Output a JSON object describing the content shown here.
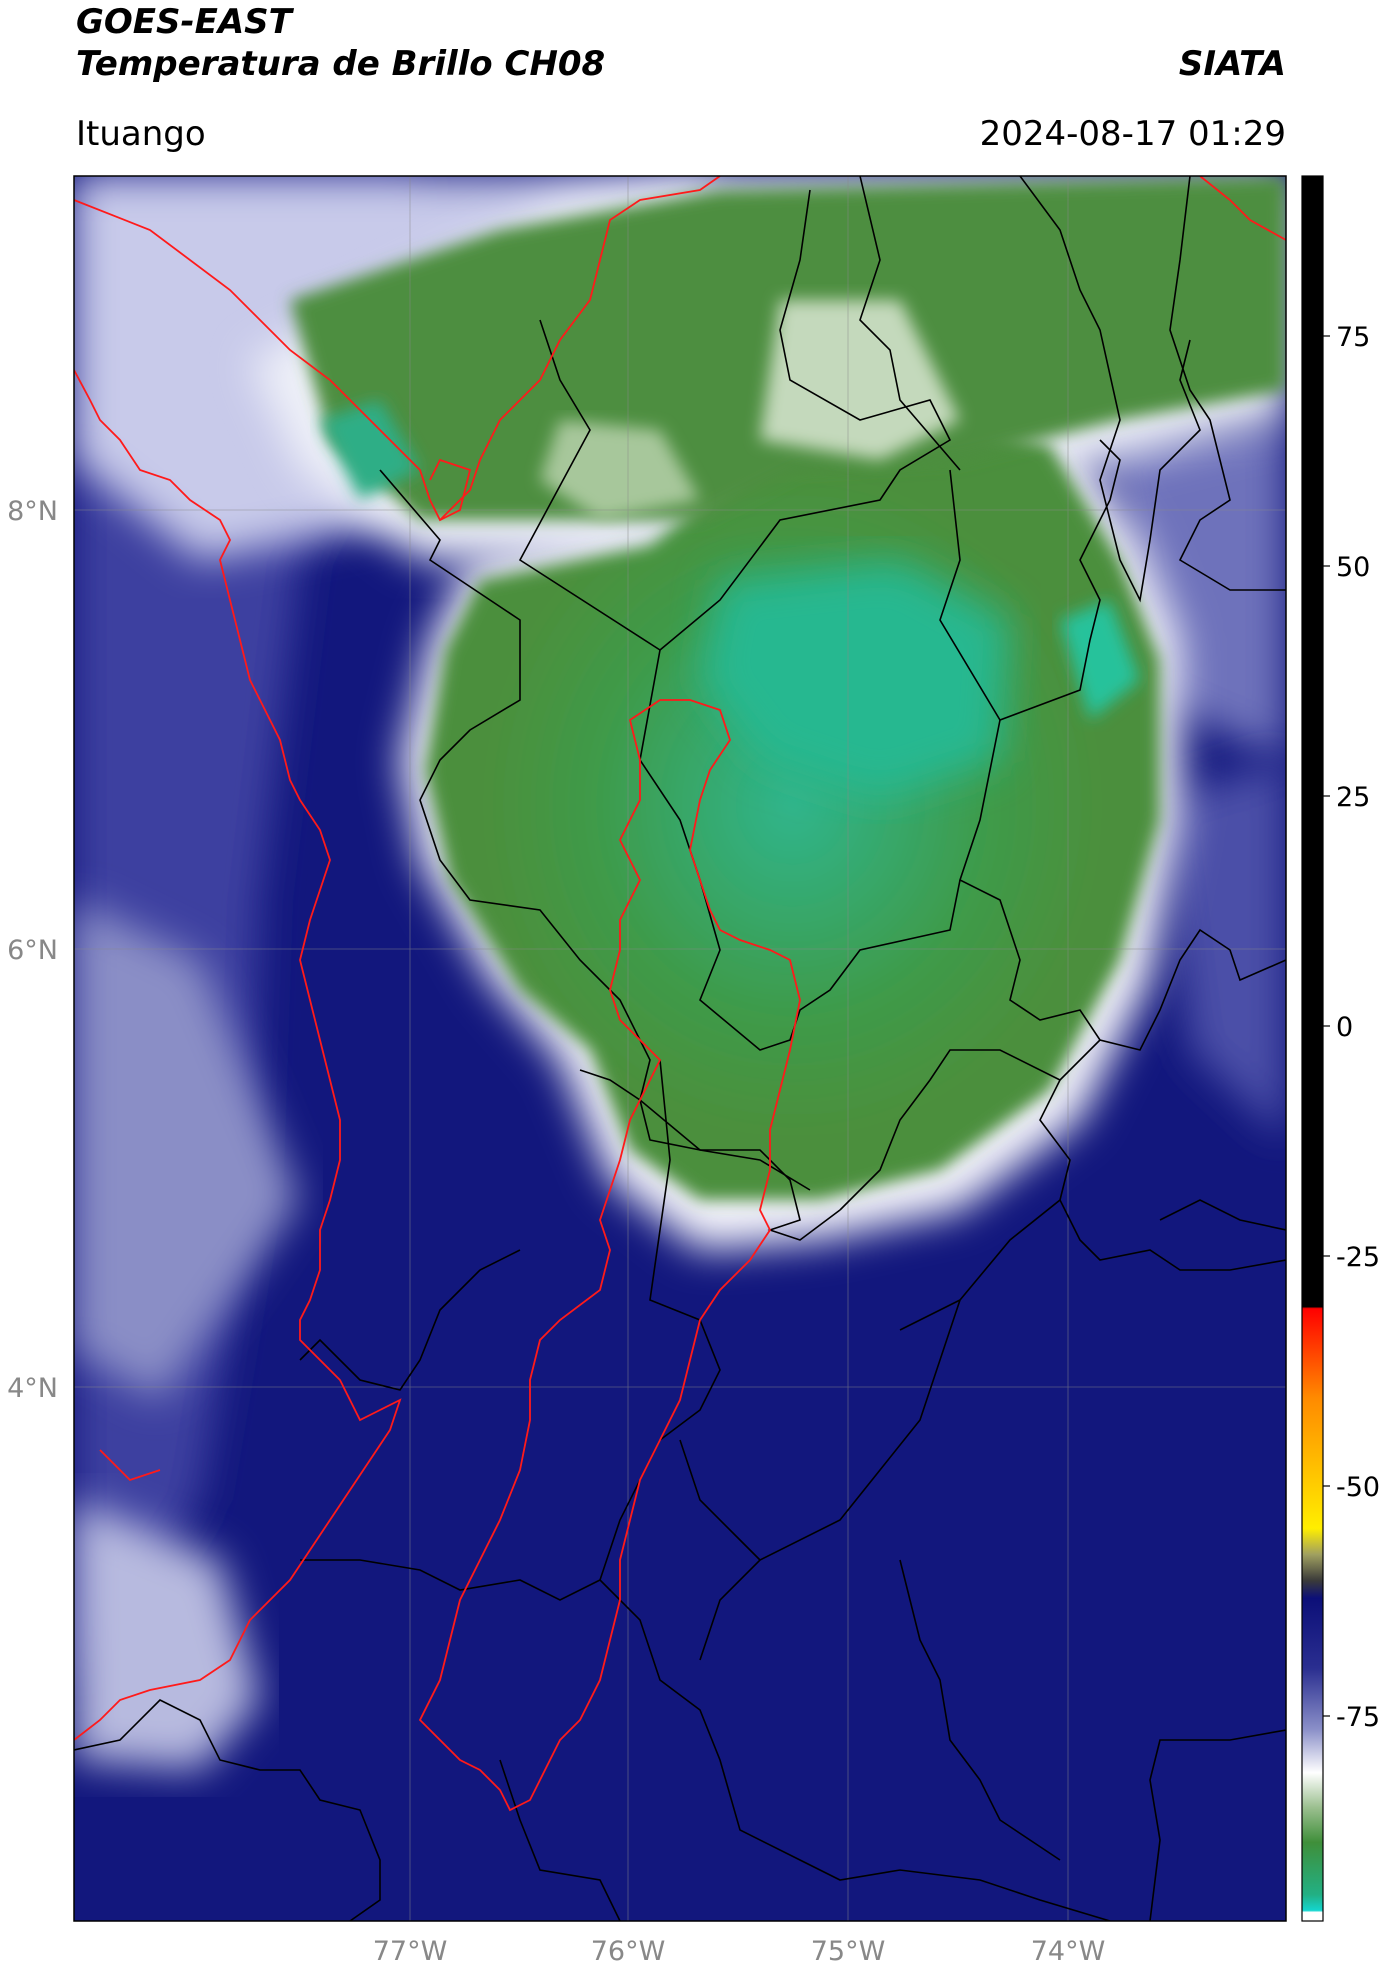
{
  "header": {
    "satellite": "GOES-EAST",
    "product": "Temperatura de Brillo CH08",
    "org": "SIATA",
    "region": "Ituango",
    "datetime": "2024-08-17 01:29"
  },
  "map": {
    "lon_ticks": [
      "77°W",
      "76°W",
      "75°W",
      "74°W"
    ],
    "lat_ticks": [
      "8°N",
      "6°N",
      "4°N"
    ]
  },
  "colorbar": {
    "ticks": [
      "75",
      "50",
      "25",
      "0",
      "-25",
      "-50",
      "-75"
    ],
    "colors": {
      "top": "#000000",
      "warm": [
        "#ff0000",
        "#ff8a00",
        "#ffee00",
        "#3a3a3a"
      ],
      "cold": [
        "#0c0f78",
        "#6a6fb8",
        "#ffffff",
        "#3f8f3a",
        "#22b084",
        "#13d6cf"
      ]
    }
  }
}
